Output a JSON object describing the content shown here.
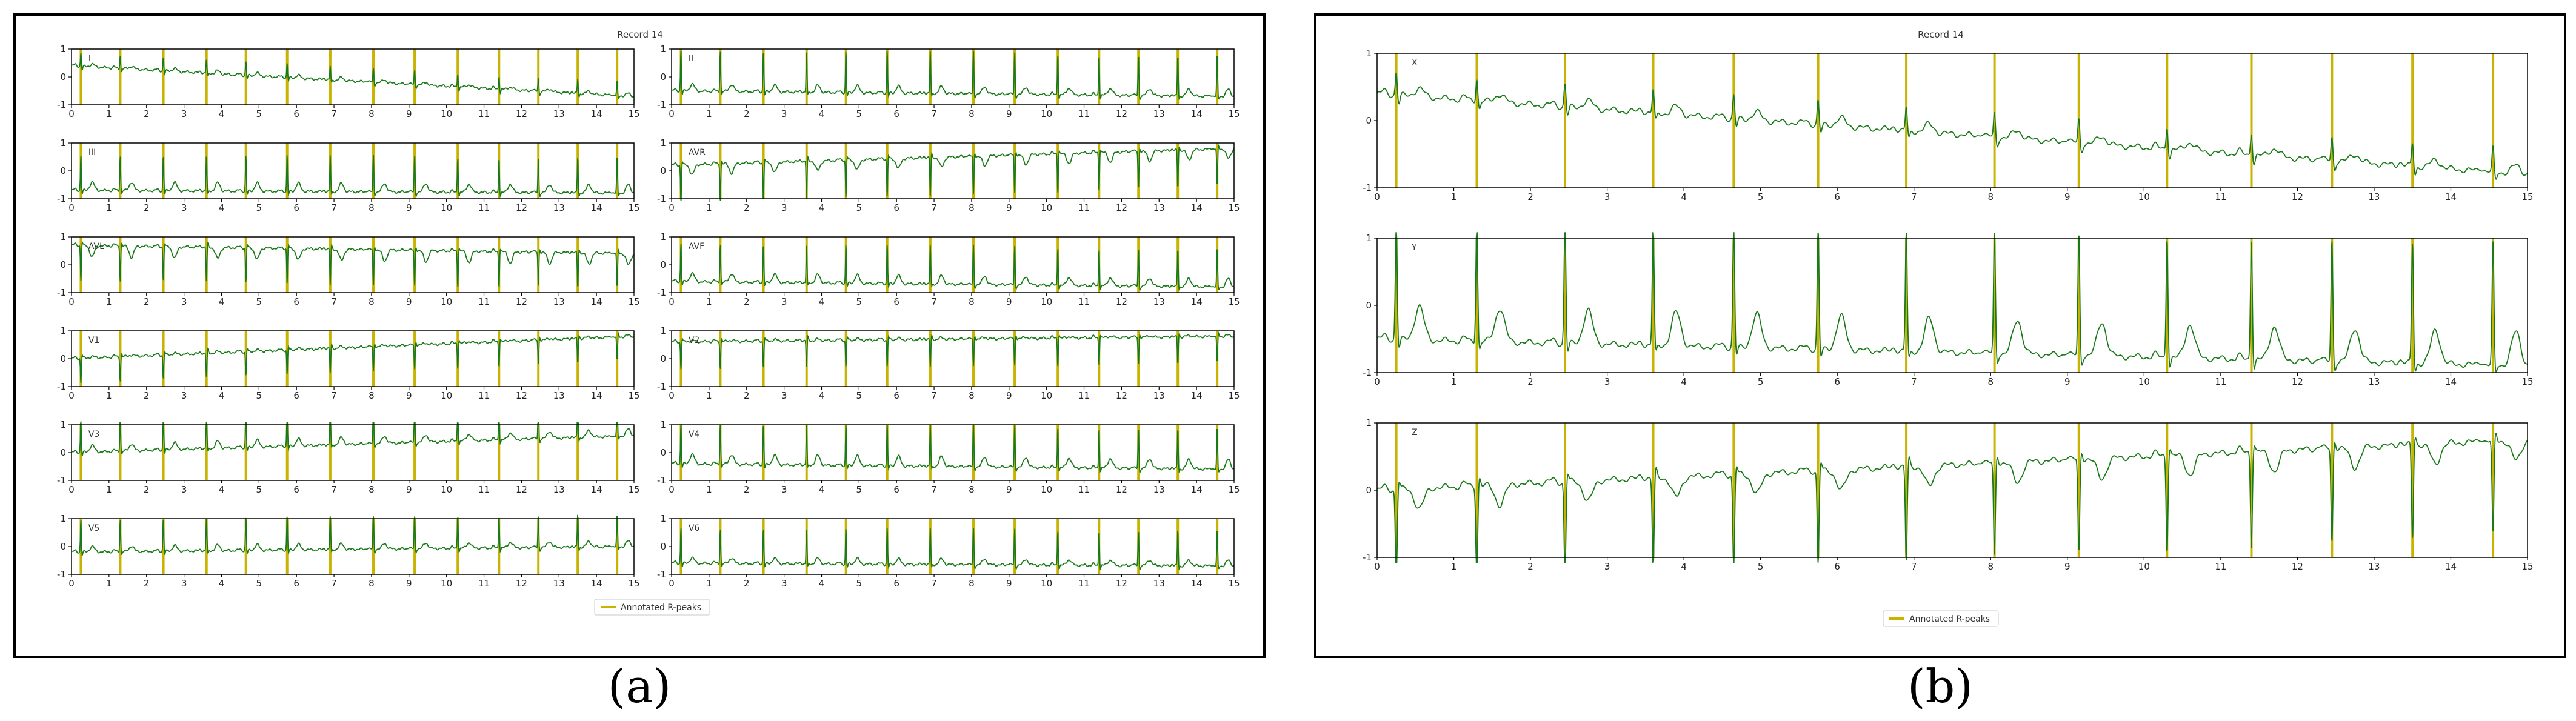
{
  "figure": {
    "panel_a_label": "(a)",
    "panel_b_label": "(b)"
  },
  "colors": {
    "signal": "#1a7a1a",
    "rpeak": "#c8b400",
    "axis": "#000000"
  },
  "chart_data": [
    {
      "type": "line",
      "panel": "a",
      "title": "Record 14",
      "xlim": [
        0,
        15
      ],
      "ylim": [
        -1,
        1
      ],
      "xticks": [
        "0",
        "1",
        "2",
        "3",
        "4",
        "5",
        "6",
        "7",
        "8",
        "9",
        "10",
        "11",
        "12",
        "13",
        "14",
        "15"
      ],
      "yticks": [
        "1",
        "0",
        "-1"
      ],
      "legend": {
        "label": "Annotated R-peaks",
        "position": "bottom-center"
      },
      "rpeaks": [
        0.25,
        1.3,
        2.45,
        3.6,
        4.65,
        5.75,
        6.9,
        8.05,
        9.15,
        10.3,
        11.4,
        12.45,
        13.5,
        14.55
      ],
      "series": [
        {
          "name": "I",
          "offset_start": 0.4,
          "offset_end": -0.7,
          "r_amp": 0.5,
          "t_amp": 0.1,
          "t_neg": false
        },
        {
          "name": "II",
          "offset_start": -0.5,
          "offset_end": -0.7,
          "r_amp": 1.5,
          "t_amp": 0.25,
          "t_neg": false
        },
        {
          "name": "III",
          "offset_start": -0.7,
          "offset_end": -0.8,
          "r_amp": 1.3,
          "t_amp": 0.3,
          "t_neg": false
        },
        {
          "name": "AVR",
          "offset_start": 0.2,
          "offset_end": 0.8,
          "r_amp": -1.4,
          "t_amp": 0.35,
          "t_neg": true
        },
        {
          "name": "AVL",
          "offset_start": 0.7,
          "offset_end": 0.4,
          "r_amp": -1.3,
          "t_amp": 0.4,
          "t_neg": true
        },
        {
          "name": "AVF",
          "offset_start": -0.6,
          "offset_end": -0.8,
          "r_amp": 1.4,
          "t_amp": 0.3,
          "t_neg": false
        },
        {
          "name": "V1",
          "offset_start": 0.0,
          "offset_end": 0.8,
          "r_amp": -0.9,
          "t_amp": 0.05,
          "t_neg": false
        },
        {
          "name": "V2",
          "offset_start": 0.6,
          "offset_end": 0.8,
          "r_amp": -1.0,
          "t_amp": 0.05,
          "t_neg": false
        },
        {
          "name": "V3",
          "offset_start": 0.0,
          "offset_end": 0.6,
          "r_amp": 1.3,
          "t_amp": 0.25,
          "t_neg": false
        },
        {
          "name": "V4",
          "offset_start": -0.4,
          "offset_end": -0.6,
          "r_amp": 1.5,
          "t_amp": 0.35,
          "t_neg": false
        },
        {
          "name": "V5",
          "offset_start": -0.2,
          "offset_end": 0.0,
          "r_amp": 1.2,
          "t_amp": 0.2,
          "t_neg": false
        },
        {
          "name": "V6",
          "offset_start": -0.6,
          "offset_end": -0.7,
          "r_amp": 1.3,
          "t_amp": 0.2,
          "t_neg": false
        }
      ]
    },
    {
      "type": "line",
      "panel": "b",
      "title": "Record 14",
      "xlim": [
        0,
        15
      ],
      "ylim": [
        -1,
        1
      ],
      "xticks": [
        "0",
        "1",
        "2",
        "3",
        "4",
        "5",
        "6",
        "7",
        "8",
        "9",
        "10",
        "11",
        "12",
        "13",
        "14",
        "15"
      ],
      "yticks": [
        "1",
        "0",
        "-1"
      ],
      "legend": {
        "label": "Annotated R-peaks",
        "position": "bottom-center"
      },
      "rpeaks": [
        0.25,
        1.3,
        2.45,
        3.6,
        4.65,
        5.75,
        6.9,
        8.05,
        9.15,
        10.3,
        11.4,
        12.45,
        13.5,
        14.55
      ],
      "series": [
        {
          "name": "X",
          "offset_start": 0.4,
          "offset_end": -0.8,
          "r_amp": 0.35,
          "t_amp": 0.12,
          "t_neg": false
        },
        {
          "name": "Y",
          "offset_start": -0.5,
          "offset_end": -0.9,
          "r_amp": 1.8,
          "t_amp": 0.5,
          "t_neg": false
        },
        {
          "name": "Z",
          "offset_start": 0.0,
          "offset_end": 0.75,
          "r_amp": -1.4,
          "t_amp": 0.3,
          "t_neg": true
        }
      ]
    }
  ]
}
